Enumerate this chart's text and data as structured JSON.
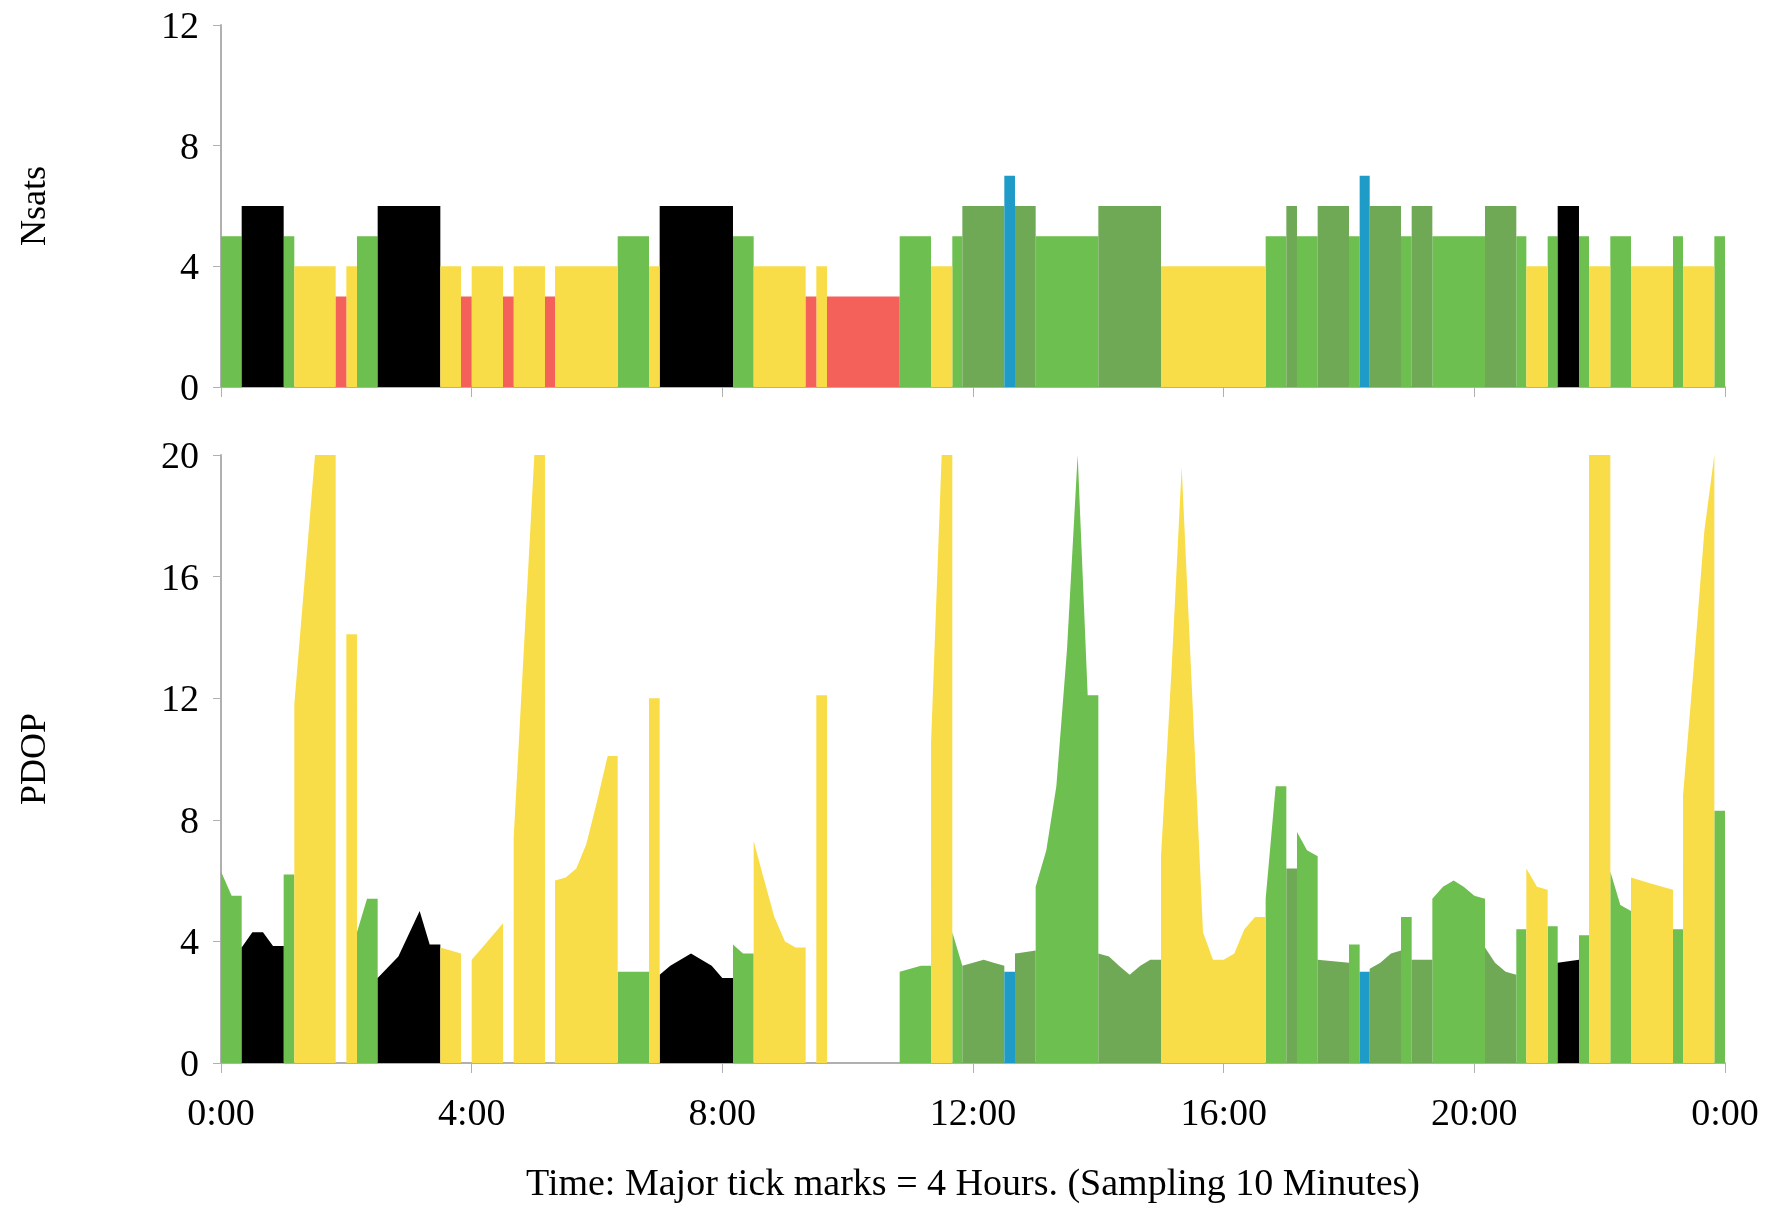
{
  "chart_data": [
    {
      "type": "area",
      "ylabel": "Nsats",
      "tick_labels": "y",
      "xlim": [
        0,
        24
      ],
      "xticks": [
        0,
        4,
        8,
        12,
        16,
        20,
        24
      ],
      "ylim": [
        0,
        12
      ],
      "yticks": [
        0,
        4,
        8,
        12
      ],
      "series": [
        {
          "color": "#6dbf4f",
          "x": [
            0,
            0.33,
            null,
            1,
            1.17,
            null,
            2.17,
            2.5,
            null,
            6.33,
            6.83,
            null,
            8.17,
            8.5,
            null,
            10.83,
            11.33,
            null,
            11.67,
            11.83,
            null,
            13,
            14,
            null,
            16.67,
            17,
            null,
            17.17,
            17.5,
            null,
            18,
            18.17,
            null,
            18.83,
            19,
            null,
            19.33,
            20.17,
            null,
            20.67,
            20.83,
            null,
            21.17,
            21.33,
            null,
            21.67,
            21.83,
            null,
            22.17,
            22.5,
            null,
            23.17,
            23.33,
            null,
            23.83,
            24
          ],
          "values": [
            5,
            5,
            null,
            5,
            5,
            null,
            5,
            5,
            null,
            5,
            5,
            null,
            5,
            5,
            null,
            5,
            5,
            null,
            5,
            5,
            null,
            5,
            5,
            null,
            5,
            5,
            null,
            5,
            5,
            null,
            5,
            5,
            null,
            5,
            5,
            null,
            5,
            5,
            null,
            5,
            5,
            null,
            5,
            5,
            null,
            5,
            5,
            null,
            5,
            5,
            null,
            5,
            5,
            null,
            5,
            5
          ]
        },
        {
          "color": "#000000",
          "x": [
            0.33,
            1,
            null,
            2.5,
            3.5,
            null,
            7,
            8.17,
            null,
            21.33,
            21.67
          ],
          "values": [
            6,
            6,
            null,
            6,
            6,
            null,
            6,
            6,
            null,
            6,
            6
          ]
        },
        {
          "color": "#f9dd48",
          "x": [
            1.17,
            1.83,
            null,
            2,
            2.17,
            null,
            3.5,
            3.83,
            null,
            4,
            4.5,
            null,
            4.67,
            5.17,
            null,
            5.33,
            6.33,
            null,
            6.83,
            7,
            null,
            8.5,
            9.33,
            null,
            9.5,
            9.67,
            null,
            11.33,
            11.67,
            null,
            15,
            16.67,
            null,
            20.83,
            21.17,
            null,
            21.83,
            22.17,
            null,
            22.5,
            23.17,
            null,
            23.33,
            23.83
          ],
          "values": [
            4,
            4,
            null,
            4,
            4,
            null,
            4,
            4,
            null,
            4,
            4,
            null,
            4,
            4,
            null,
            4,
            4,
            null,
            4,
            4,
            null,
            4,
            4,
            null,
            4,
            4,
            null,
            4,
            4,
            null,
            4,
            4,
            null,
            4,
            4,
            null,
            4,
            4,
            null,
            4,
            4,
            null,
            4,
            4
          ]
        },
        {
          "color": "#f4605a",
          "x": [
            1.83,
            2,
            null,
            3.83,
            4,
            null,
            4.5,
            4.67,
            null,
            5.17,
            5.33,
            null,
            9.33,
            9.5,
            null,
            9.67,
            10.83
          ],
          "values": [
            3,
            3,
            null,
            3,
            3,
            null,
            3,
            3,
            null,
            3,
            3,
            null,
            3,
            3,
            null,
            3,
            3
          ]
        },
        {
          "color": "#6fa956",
          "x": [
            11.83,
            12.5,
            null,
            12.67,
            13,
            null,
            14,
            15,
            null,
            17,
            17.17,
            null,
            17.5,
            18,
            null,
            18.33,
            18.83,
            null,
            19,
            19.33,
            null,
            20.17,
            20.67
          ],
          "values": [
            6,
            6,
            null,
            6,
            6,
            null,
            6,
            6,
            null,
            6,
            6,
            null,
            6,
            6,
            null,
            6,
            6,
            null,
            6,
            6,
            null,
            6,
            6
          ]
        },
        {
          "color": "#1f9bc8",
          "x": [
            12.5,
            12.67,
            null,
            18.17,
            18.33
          ],
          "values": [
            7,
            7,
            null,
            7,
            7
          ]
        }
      ]
    },
    {
      "type": "area",
      "ylabel": "PDOP",
      "xlabel": "Time: Major tick marks = 4 Hours. (Sampling 10 Minutes)",
      "xlim": [
        0,
        24
      ],
      "xticks": [
        {
          "value": 0,
          "label": "0:00"
        },
        {
          "value": 4,
          "label": "4:00"
        },
        {
          "value": 8,
          "label": "8:00"
        },
        {
          "value": 12,
          "label": "12:00"
        },
        {
          "value": 16,
          "label": "16:00"
        },
        {
          "value": 20,
          "label": "20:00"
        },
        {
          "value": 24,
          "label": "0:00"
        }
      ],
      "ylim": [
        0,
        20
      ],
      "yticks": [
        0,
        4,
        8,
        12,
        16,
        20
      ],
      "series": [
        {
          "color": "#6dbf4f",
          "x": [
            0,
            0.17,
            0.33,
            null,
            1,
            1.17,
            null,
            2.17,
            2.33,
            2.5,
            null,
            6.33,
            6.83,
            null,
            8.17,
            8.33,
            8.5,
            null,
            10.83,
            11,
            11.17,
            11.33,
            null,
            11.67,
            11.83,
            null,
            13,
            13.17,
            13.33,
            13.5,
            13.67,
            13.83,
            14,
            null,
            16.67,
            16.83,
            17,
            null,
            17.17,
            17.33,
            17.5,
            null,
            18,
            18.17,
            null,
            18.83,
            19,
            null,
            19.33,
            19.5,
            19.67,
            19.83,
            20,
            20.17,
            null,
            20.67,
            20.83,
            null,
            21.17,
            21.33,
            null,
            21.67,
            21.83,
            null,
            22.17,
            22.33,
            22.5,
            null,
            23.17,
            23.33,
            null,
            23.83,
            24
          ],
          "values": [
            6.3,
            5.5,
            5.5,
            null,
            6.2,
            6.2,
            null,
            4.3,
            5.4,
            5.4,
            null,
            3,
            3,
            null,
            3.9,
            3.6,
            3.6,
            null,
            3,
            3.1,
            3.2,
            3.2,
            null,
            4.3,
            3.2,
            null,
            5.8,
            7,
            9.1,
            13.6,
            20,
            12.1,
            12.1,
            null,
            5.4,
            9.1,
            9.1,
            null,
            7.6,
            7,
            6.8,
            null,
            3.9,
            3.9,
            null,
            4.8,
            4.8,
            null,
            5.4,
            5.8,
            6,
            5.8,
            5.5,
            5.4,
            null,
            4.4,
            4.4,
            null,
            4.5,
            4.5,
            null,
            4.2,
            4.2,
            null,
            6.3,
            5.2,
            5,
            null,
            4.4,
            4.4,
            null,
            8.3,
            8.3
          ]
        },
        {
          "color": "#000000",
          "x": [
            0.33,
            0.5,
            0.67,
            0.83,
            1,
            null,
            2.5,
            2.83,
            3.17,
            3.33,
            3.5,
            null,
            7,
            7.17,
            7.5,
            7.83,
            8,
            8.17,
            null,
            21.33,
            21.67
          ],
          "values": [
            3.8,
            4.3,
            4.3,
            3.85,
            3.85,
            null,
            2.8,
            3.5,
            5,
            3.9,
            3.9,
            null,
            2.9,
            3.2,
            3.6,
            3.2,
            2.8,
            2.8,
            null,
            3.3,
            3.4
          ]
        },
        {
          "color": "#f9dd48",
          "x": [
            1.17,
            1.5,
            1.83,
            null,
            2,
            2.17,
            null,
            3.5,
            3.83,
            null,
            4,
            4.17,
            4.5,
            null,
            4.67,
            5,
            5.17,
            null,
            5.33,
            5.5,
            5.67,
            5.83,
            6,
            6.17,
            6.33,
            null,
            6.83,
            7,
            null,
            8.5,
            8.67,
            8.83,
            9,
            9.17,
            9.33,
            null,
            9.5,
            9.67,
            null,
            11.33,
            11.5,
            11.67,
            null,
            15,
            15.17,
            15.33,
            15.5,
            15.67,
            15.83,
            16,
            16.17,
            16.33,
            16.5,
            16.67,
            null,
            20.83,
            21,
            21.17,
            null,
            21.83,
            22.17,
            null,
            22.5,
            22.83,
            23.17,
            null,
            23.33,
            23.5,
            23.67,
            23.83
          ],
          "values": [
            11.8,
            20,
            20,
            null,
            14.1,
            14.1,
            null,
            3.8,
            3.6,
            null,
            3.4,
            3.8,
            4.6,
            null,
            7.4,
            20,
            20,
            null,
            6,
            6.1,
            6.4,
            7.2,
            8.6,
            10.1,
            10.1,
            null,
            12,
            12,
            null,
            7.3,
            6,
            4.8,
            4,
            3.8,
            3.8,
            null,
            12.1,
            12.1,
            null,
            10.5,
            20,
            20,
            null,
            6.8,
            13,
            19.6,
            12,
            4.3,
            3.4,
            3.4,
            3.6,
            4.4,
            4.8,
            4.8,
            null,
            6.4,
            5.8,
            5.7,
            null,
            20,
            20,
            null,
            6.1,
            5.9,
            5.7,
            null,
            8.8,
            13,
            17.5,
            20
          ]
        },
        {
          "color": "#6fa956",
          "x": [
            11.83,
            12,
            12.17,
            12.33,
            12.5,
            null,
            12.67,
            13,
            null,
            14,
            14.17,
            14.33,
            14.5,
            14.67,
            14.83,
            15,
            null,
            17,
            17.17,
            null,
            17.5,
            18,
            null,
            18.33,
            18.5,
            18.67,
            18.83,
            null,
            19,
            19.33,
            null,
            20.17,
            20.33,
            20.5,
            20.67
          ],
          "values": [
            3.2,
            3.3,
            3.4,
            3.3,
            3.2,
            null,
            3.6,
            3.7,
            null,
            3.6,
            3.5,
            3.2,
            2.9,
            3.2,
            3.4,
            3.4,
            null,
            6.4,
            6.4,
            null,
            3.4,
            3.3,
            null,
            3.1,
            3.3,
            3.6,
            3.7,
            null,
            3.4,
            3.4,
            null,
            3.8,
            3.3,
            3,
            2.9
          ]
        },
        {
          "color": "#1f9bc8",
          "x": [
            12.5,
            12.67,
            null,
            18.17,
            18.33
          ],
          "values": [
            3,
            3,
            null,
            3,
            3
          ]
        }
      ]
    }
  ]
}
